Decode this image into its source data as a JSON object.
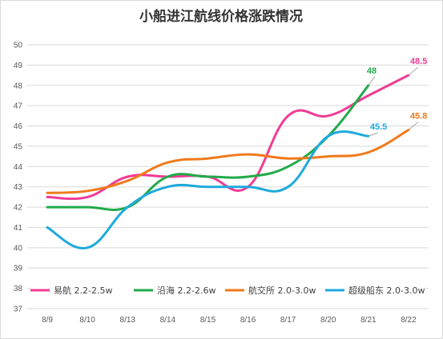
{
  "chart_data": {
    "type": "line",
    "title": "小船进江航线价格涨跌情况",
    "categories": [
      "8/9",
      "8/10",
      "8/13",
      "8/14",
      "8/15",
      "8/16",
      "8/17",
      "8/20",
      "8/21",
      "8/22"
    ],
    "ylim": [
      37,
      50
    ],
    "yticks": [
      37,
      38,
      39,
      40,
      41,
      42,
      43,
      44,
      45,
      46,
      47,
      48,
      49,
      50
    ],
    "grid": true,
    "legend_position": "bottom",
    "series": [
      {
        "name": "易航 2.2-2.5w",
        "color": "#f03c96",
        "values": [
          42.5,
          42.5,
          43.5,
          43.5,
          43.5,
          43.0,
          46.5,
          46.5,
          47.5,
          48.5
        ],
        "end_label": "48.5"
      },
      {
        "name": "沿海  2.2-2.6w",
        "color": "#22aa4a",
        "values": [
          42.0,
          42.0,
          42.0,
          43.5,
          43.5,
          43.5,
          44.0,
          45.5,
          48.0,
          null
        ],
        "end_label": "48"
      },
      {
        "name": "航交所 2.0-3.0w",
        "color": "#f07a1c",
        "values": [
          42.7,
          42.8,
          43.3,
          44.2,
          44.4,
          44.6,
          44.4,
          44.5,
          44.7,
          45.8
        ],
        "end_label": "45.8"
      },
      {
        "name": "超级船东  2.0-3.0w",
        "color": "#1eaadc",
        "values": [
          41.0,
          40.0,
          42.0,
          43.0,
          43.0,
          43.0,
          43.0,
          45.5,
          45.5,
          null
        ],
        "end_label": "45.5"
      }
    ]
  }
}
